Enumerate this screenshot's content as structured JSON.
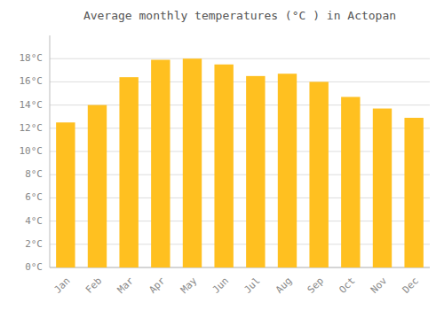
{
  "chart_data": {
    "type": "bar",
    "title": "Average monthly temperatures (°C ) in Actopan",
    "categories": [
      "Jan",
      "Feb",
      "Mar",
      "Apr",
      "May",
      "Jun",
      "Jul",
      "Aug",
      "Sep",
      "Oct",
      "Nov",
      "Dec"
    ],
    "values": [
      12.5,
      14.0,
      16.4,
      17.9,
      18.0,
      17.5,
      16.5,
      16.7,
      16.0,
      14.7,
      13.7,
      12.9
    ],
    "color": "#FFC020",
    "ylim": [
      0,
      20
    ],
    "yticks": [
      {
        "value": 0,
        "label": "0°C"
      },
      {
        "value": 2,
        "label": "2°C"
      },
      {
        "value": 4,
        "label": "4°C"
      },
      {
        "value": 6,
        "label": "6°C"
      },
      {
        "value": 8,
        "label": "8°C"
      },
      {
        "value": 10,
        "label": "10°C"
      },
      {
        "value": 12,
        "label": "12°C"
      },
      {
        "value": 14,
        "label": "14°C"
      },
      {
        "value": 16,
        "label": "16°C"
      },
      {
        "value": 18,
        "label": "18°C"
      }
    ],
    "grid": true
  }
}
